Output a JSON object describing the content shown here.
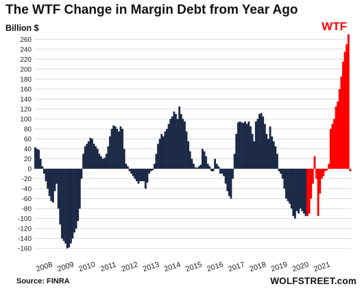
{
  "chart_data": {
    "type": "bar",
    "title": "The WTF Change in Margin Debt from Year Ago",
    "ylabel": "Billion $",
    "source": "Source: FINRA",
    "brand": "WOLFSTREET.com",
    "annotation": "WTF",
    "ylim": [
      -160,
      270
    ],
    "yticks": [
      -160,
      -140,
      -120,
      -100,
      -80,
      -60,
      -40,
      -20,
      0,
      20,
      40,
      60,
      80,
      100,
      120,
      140,
      160,
      180,
      200,
      220,
      240,
      260
    ],
    "xticks": [
      "2008",
      "2009",
      "2010",
      "2011",
      "2012",
      "2013",
      "2014",
      "2015",
      "2016",
      "2017",
      "2018",
      "2019",
      "2020",
      "2021"
    ],
    "x_start": "2008-01",
    "grid": true,
    "colors": {
      "bar": "#1c2a47",
      "highlight": "#ff0000",
      "grid": "#d9d9d9"
    },
    "highlight_from": "2020-10",
    "values": [
      43,
      40,
      38,
      20,
      5,
      -10,
      -25,
      -40,
      -55,
      -65,
      -68,
      -45,
      -30,
      -80,
      -112,
      -140,
      -145,
      -150,
      -160,
      -158,
      -150,
      -140,
      -128,
      -120,
      -105,
      -80,
      -20,
      30,
      45,
      50,
      55,
      62,
      60,
      50,
      45,
      40,
      30,
      25,
      20,
      22,
      30,
      45,
      65,
      80,
      87,
      85,
      80,
      75,
      85,
      80,
      40,
      10,
      5,
      -5,
      -10,
      -15,
      -20,
      -25,
      -30,
      -25,
      -25,
      -25,
      -40,
      -28,
      -10,
      -5,
      -3,
      10,
      30,
      50,
      60,
      70,
      65,
      75,
      80,
      90,
      100,
      105,
      115,
      110,
      100,
      125,
      110,
      100,
      95,
      75,
      55,
      35,
      20,
      10,
      3,
      2,
      5,
      8,
      40,
      35,
      25,
      10,
      5,
      -5,
      -5,
      20,
      10,
      5,
      -10,
      -10,
      -15,
      -30,
      -45,
      -55,
      -60,
      -20,
      30,
      70,
      93,
      95,
      93,
      92,
      95,
      90,
      95,
      85,
      70,
      55,
      95,
      100,
      110,
      112,
      105,
      90,
      70,
      60,
      85,
      65,
      55,
      45,
      30,
      -5,
      -10,
      -20,
      -40,
      -60,
      -65,
      -70,
      -80,
      -95,
      -100,
      -85,
      -90,
      -80,
      -85,
      -90,
      -95,
      -95,
      -90,
      -60,
      -30,
      25,
      -20,
      -95,
      -50,
      -20,
      -15,
      -5,
      -3,
      10,
      80,
      90,
      100,
      125,
      135,
      160,
      185,
      215,
      235,
      250,
      270,
      -5
    ]
  }
}
